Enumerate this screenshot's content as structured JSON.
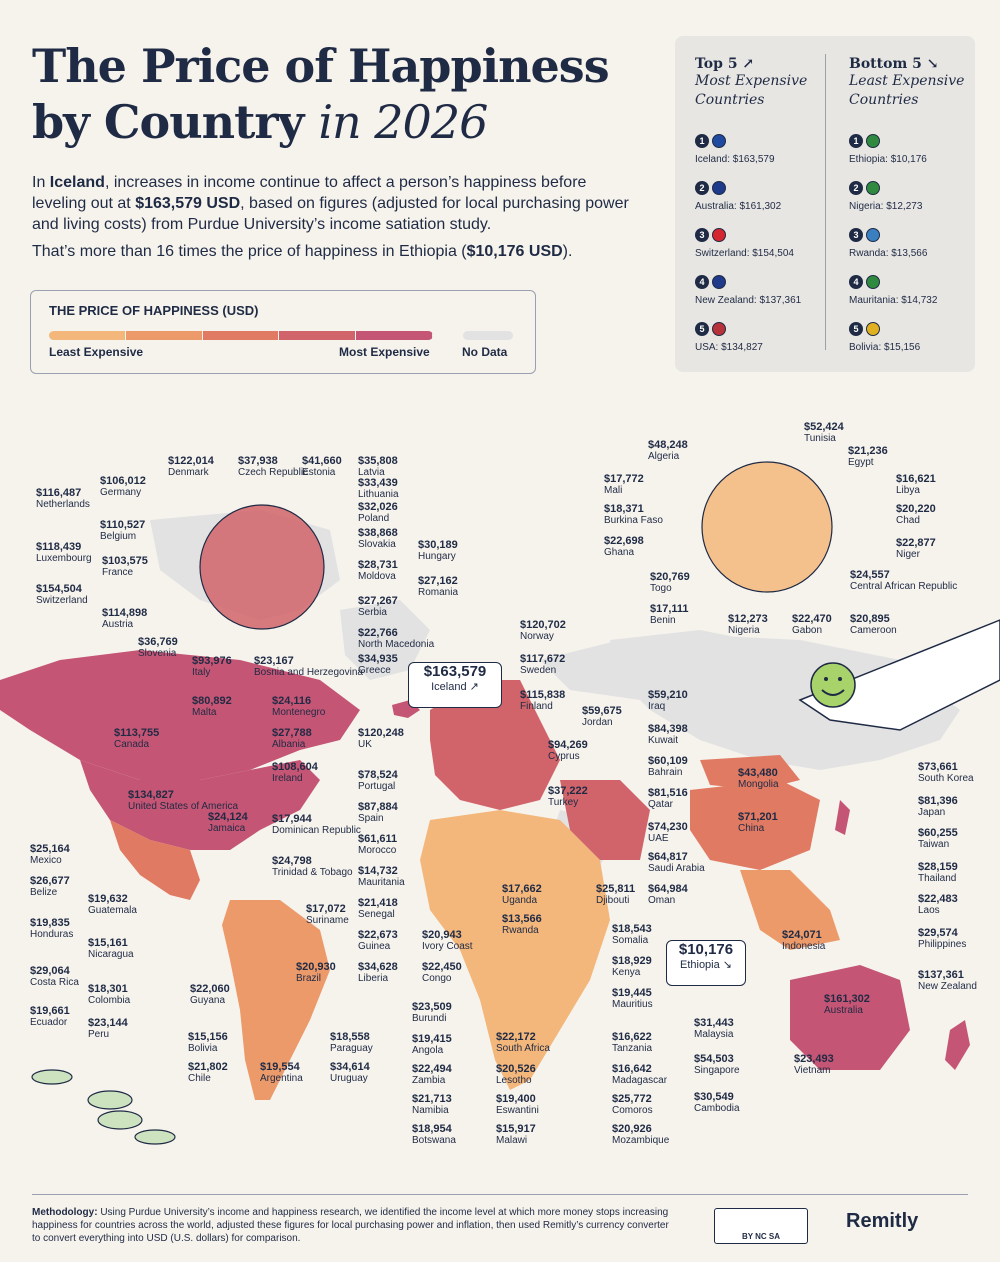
{
  "title": {
    "line1": "The Price of Happiness",
    "line2": "by Country",
    "line2_italic": "in 2026"
  },
  "intro": {
    "p1_a": "In ",
    "p1_bold1": "Iceland",
    "p1_b": ", increases in income continue to affect a person’s happiness before leveling out at ",
    "p1_bold2": "$163,579 USD",
    "p1_c": ", based on figures (adjusted for local purchasing power and living costs) from Purdue University’s income satiation study.",
    "p2_a": "That’s more than 16 times the price of happiness in Ethiopia (",
    "p2_bold": "$10,176 USD",
    "p2_b": ")."
  },
  "legend": {
    "title": "THE PRICE OF HAPPINESS (USD)",
    "least": "Least Expensive",
    "most": "Most Expensive",
    "no_data": "No Data",
    "colors": [
      "#f3b77b",
      "#ec9a6a",
      "#e07a63",
      "#d0646a",
      "#c55574"
    ],
    "no_data_color": "#e2e2e2"
  },
  "top5": {
    "heading": "Top 5 ↗",
    "sub1": "Most Expensive",
    "sub2": "Countries",
    "items": [
      {
        "rank": "1",
        "label": "Iceland: $163,579",
        "flag": "#1f4aa0"
      },
      {
        "rank": "2",
        "label": "Australia: $161,302",
        "flag": "#1f3a8a"
      },
      {
        "rank": "3",
        "label": "Switzerland: $154,504",
        "flag": "#d5272f"
      },
      {
        "rank": "4",
        "label": "New Zealand: $137,361",
        "flag": "#1f3a8a"
      },
      {
        "rank": "5",
        "label": "USA: $134,827",
        "flag": "#b8323a"
      }
    ]
  },
  "bottom5": {
    "heading": "Bottom 5 ↘",
    "sub1": "Least Expensive",
    "sub2": "Countries",
    "items": [
      {
        "rank": "1",
        "label": "Ethiopia: $10,176",
        "flag": "#2f8a3f"
      },
      {
        "rank": "2",
        "label": "Nigeria: $12,273",
        "flag": "#2f8a3f"
      },
      {
        "rank": "3",
        "label": "Rwanda: $13,566",
        "flag": "#3a7fc0"
      },
      {
        "rank": "4",
        "label": "Mauritania: $14,732",
        "flag": "#2f8a3f"
      },
      {
        "rank": "5",
        "label": "Bolivia: $15,156",
        "flag": "#e0b020"
      }
    ]
  },
  "callouts": {
    "iceland": {
      "value": "$163,579",
      "name": "Iceland ↗"
    },
    "ethiopia": {
      "value": "$10,176",
      "name": "Ethiopia ↘"
    }
  },
  "labels": [
    {
      "v": "$122,014",
      "n": "Denmark"
    },
    {
      "v": "$37,938",
      "n": "Czech Republic"
    },
    {
      "v": "$41,660",
      "n": "Estonia"
    },
    {
      "v": "$35,808",
      "n": "Latvia"
    },
    {
      "v": "$116,487",
      "n": "Netherlands"
    },
    {
      "v": "$106,012",
      "n": "Germany"
    },
    {
      "v": "$33,439",
      "n": "Lithuania"
    },
    {
      "v": "$32,026",
      "n": "Poland"
    },
    {
      "v": "$110,527",
      "n": "Belgium"
    },
    {
      "v": "$38,868",
      "n": "Slovakia"
    },
    {
      "v": "$30,189",
      "n": "Hungary"
    },
    {
      "v": "$118,439",
      "n": "Luxembourg"
    },
    {
      "v": "$103,575",
      "n": "France"
    },
    {
      "v": "$28,731",
      "n": "Moldova"
    },
    {
      "v": "$27,162",
      "n": "Romania"
    },
    {
      "v": "$154,504",
      "n": "Switzerland"
    },
    {
      "v": "$27,267",
      "n": "Serbia"
    },
    {
      "v": "$114,898",
      "n": "Austria"
    },
    {
      "v": "$22,766",
      "n": "North Macedonia"
    },
    {
      "v": "$36,769",
      "n": "Slovenia"
    },
    {
      "v": "$34,935",
      "n": "Greece"
    },
    {
      "v": "$93,976",
      "n": "Italy"
    },
    {
      "v": "$23,167",
      "n": "Bosnia and Herzegovina"
    },
    {
      "v": "$80,892",
      "n": "Malta"
    },
    {
      "v": "$24,116",
      "n": "Montenegro"
    },
    {
      "v": "$27,788",
      "n": "Albania"
    },
    {
      "v": "$113,755",
      "n": "Canada"
    },
    {
      "v": "$120,248",
      "n": "UK"
    },
    {
      "v": "$108,604",
      "n": "Ireland"
    },
    {
      "v": "$134,827",
      "n": "United States of America"
    },
    {
      "v": "$78,524",
      "n": "Portugal"
    },
    {
      "v": "$87,884",
      "n": "Spain"
    },
    {
      "v": "$61,611",
      "n": "Morocco"
    },
    {
      "v": "$24,124",
      "n": "Jamaica"
    },
    {
      "v": "$17,944",
      "n": "Dominican Republic"
    },
    {
      "v": "$24,798",
      "n": "Trinidad & Tobago"
    },
    {
      "v": "$25,164",
      "n": "Mexico"
    },
    {
      "v": "$26,677",
      "n": "Belize"
    },
    {
      "v": "$19,632",
      "n": "Guatemala"
    },
    {
      "v": "$19,835",
      "n": "Honduras"
    },
    {
      "v": "$15,161",
      "n": "Nicaragua"
    },
    {
      "v": "$29,064",
      "n": "Costa Rica"
    },
    {
      "v": "$18,301",
      "n": "Colombia"
    },
    {
      "v": "$19,661",
      "n": "Ecuador"
    },
    {
      "v": "$23,144",
      "n": "Peru"
    },
    {
      "v": "$17,072",
      "n": "Suriname"
    },
    {
      "v": "$22,060",
      "n": "Guyana"
    },
    {
      "v": "$20,930",
      "n": "Brazil"
    },
    {
      "v": "$15,156",
      "n": "Bolivia"
    },
    {
      "v": "$18,558",
      "n": "Paraguay"
    },
    {
      "v": "$21,802",
      "n": "Chile"
    },
    {
      "v": "$19,554",
      "n": "Argentina"
    },
    {
      "v": "$34,614",
      "n": "Uruguay"
    },
    {
      "v": "$14,732",
      "n": "Mauritania"
    },
    {
      "v": "$21,418",
      "n": "Senegal"
    },
    {
      "v": "$22,673",
      "n": "Guinea"
    },
    {
      "v": "$34,628",
      "n": "Liberia"
    },
    {
      "v": "$20,943",
      "n": "Ivory Coast"
    },
    {
      "v": "$22,450",
      "n": "Congo"
    },
    {
      "v": "$120,702",
      "n": "Norway"
    },
    {
      "v": "$117,672",
      "n": "Sweden"
    },
    {
      "v": "$115,838",
      "n": "Finland"
    },
    {
      "v": "$59,675",
      "n": "Jordan"
    },
    {
      "v": "$94,269",
      "n": "Cyprus"
    },
    {
      "v": "$37,222",
      "n": "Turkey"
    },
    {
      "v": "$59,210",
      "n": "Iraq"
    },
    {
      "v": "$84,398",
      "n": "Kuwait"
    },
    {
      "v": "$60,109",
      "n": "Bahrain"
    },
    {
      "v": "$81,516",
      "n": "Qatar"
    },
    {
      "v": "$74,230",
      "n": "UAE"
    },
    {
      "v": "$64,817",
      "n": "Saudi Arabia"
    },
    {
      "v": "$64,984",
      "n": "Oman"
    },
    {
      "v": "$43,480",
      "n": "Mongolia"
    },
    {
      "v": "$71,201",
      "n": "China"
    },
    {
      "v": "$73,661",
      "n": "South Korea"
    },
    {
      "v": "$81,396",
      "n": "Japan"
    },
    {
      "v": "$60,255",
      "n": "Taiwan"
    },
    {
      "v": "$28,159",
      "n": "Thailand"
    },
    {
      "v": "$22,483",
      "n": "Laos"
    },
    {
      "v": "$29,574",
      "n": "Philippines"
    },
    {
      "v": "$24,071",
      "n": "Indonesia"
    },
    {
      "v": "$161,302",
      "n": "Australia"
    },
    {
      "v": "$137,361",
      "n": "New Zealand"
    },
    {
      "v": "$31,443",
      "n": "Malaysia"
    },
    {
      "v": "$54,503",
      "n": "Singapore"
    },
    {
      "v": "$23,493",
      "n": "Vietnam"
    },
    {
      "v": "$30,549",
      "n": "Cambodia"
    },
    {
      "v": "$17,662",
      "n": "Uganda"
    },
    {
      "v": "$25,811",
      "n": "Djibouti"
    },
    {
      "v": "$13,566",
      "n": "Rwanda"
    },
    {
      "v": "$18,543",
      "n": "Somalia"
    },
    {
      "v": "$18,929",
      "n": "Kenya"
    },
    {
      "v": "$19,445",
      "n": "Mauritius"
    },
    {
      "v": "$23,509",
      "n": "Burundi"
    },
    {
      "v": "$19,415",
      "n": "Angola"
    },
    {
      "v": "$22,172",
      "n": "South Africa"
    },
    {
      "v": "$16,622",
      "n": "Tanzania"
    },
    {
      "v": "$22,494",
      "n": "Zambia"
    },
    {
      "v": "$20,526",
      "n": "Lesotho"
    },
    {
      "v": "$16,642",
      "n": "Madagascar"
    },
    {
      "v": "$21,713",
      "n": "Namibia"
    },
    {
      "v": "$19,400",
      "n": "Eswantini"
    },
    {
      "v": "$25,772",
      "n": "Comoros"
    },
    {
      "v": "$18,954",
      "n": "Botswana"
    },
    {
      "v": "$15,917",
      "n": "Malawi"
    },
    {
      "v": "$20,926",
      "n": "Mozambique"
    },
    {
      "v": "$52,424",
      "n": "Tunisia"
    },
    {
      "v": "$48,248",
      "n": "Algeria"
    },
    {
      "v": "$21,236",
      "n": "Egypt"
    },
    {
      "v": "$17,772",
      "n": "Mali"
    },
    {
      "v": "$16,621",
      "n": "Libya"
    },
    {
      "v": "$18,371",
      "n": "Burkina Faso"
    },
    {
      "v": "$20,220",
      "n": "Chad"
    },
    {
      "v": "$22,698",
      "n": "Ghana"
    },
    {
      "v": "$22,877",
      "n": "Niger"
    },
    {
      "v": "$20,769",
      "n": "Togo"
    },
    {
      "v": "$24,557",
      "n": "Central African Republic"
    },
    {
      "v": "$17,111",
      "n": "Benin"
    },
    {
      "v": "$12,273",
      "n": "Nigeria"
    },
    {
      "v": "$22,470",
      "n": "Gabon"
    },
    {
      "v": "$20,895",
      "n": "Cameroon"
    }
  ],
  "methodology": {
    "bold": "Methodology:",
    "text": " Using Purdue University’s income and happiness research, we identified the income level at which more money stops increasing happiness for countries across the world, adjusted these figures for local purchasing power and inflation, then used Remitly’s currency converter to convert everything into USD (U.S. dollars) for comparison."
  },
  "license": "BY NC SA",
  "brand": "Remitly"
}
